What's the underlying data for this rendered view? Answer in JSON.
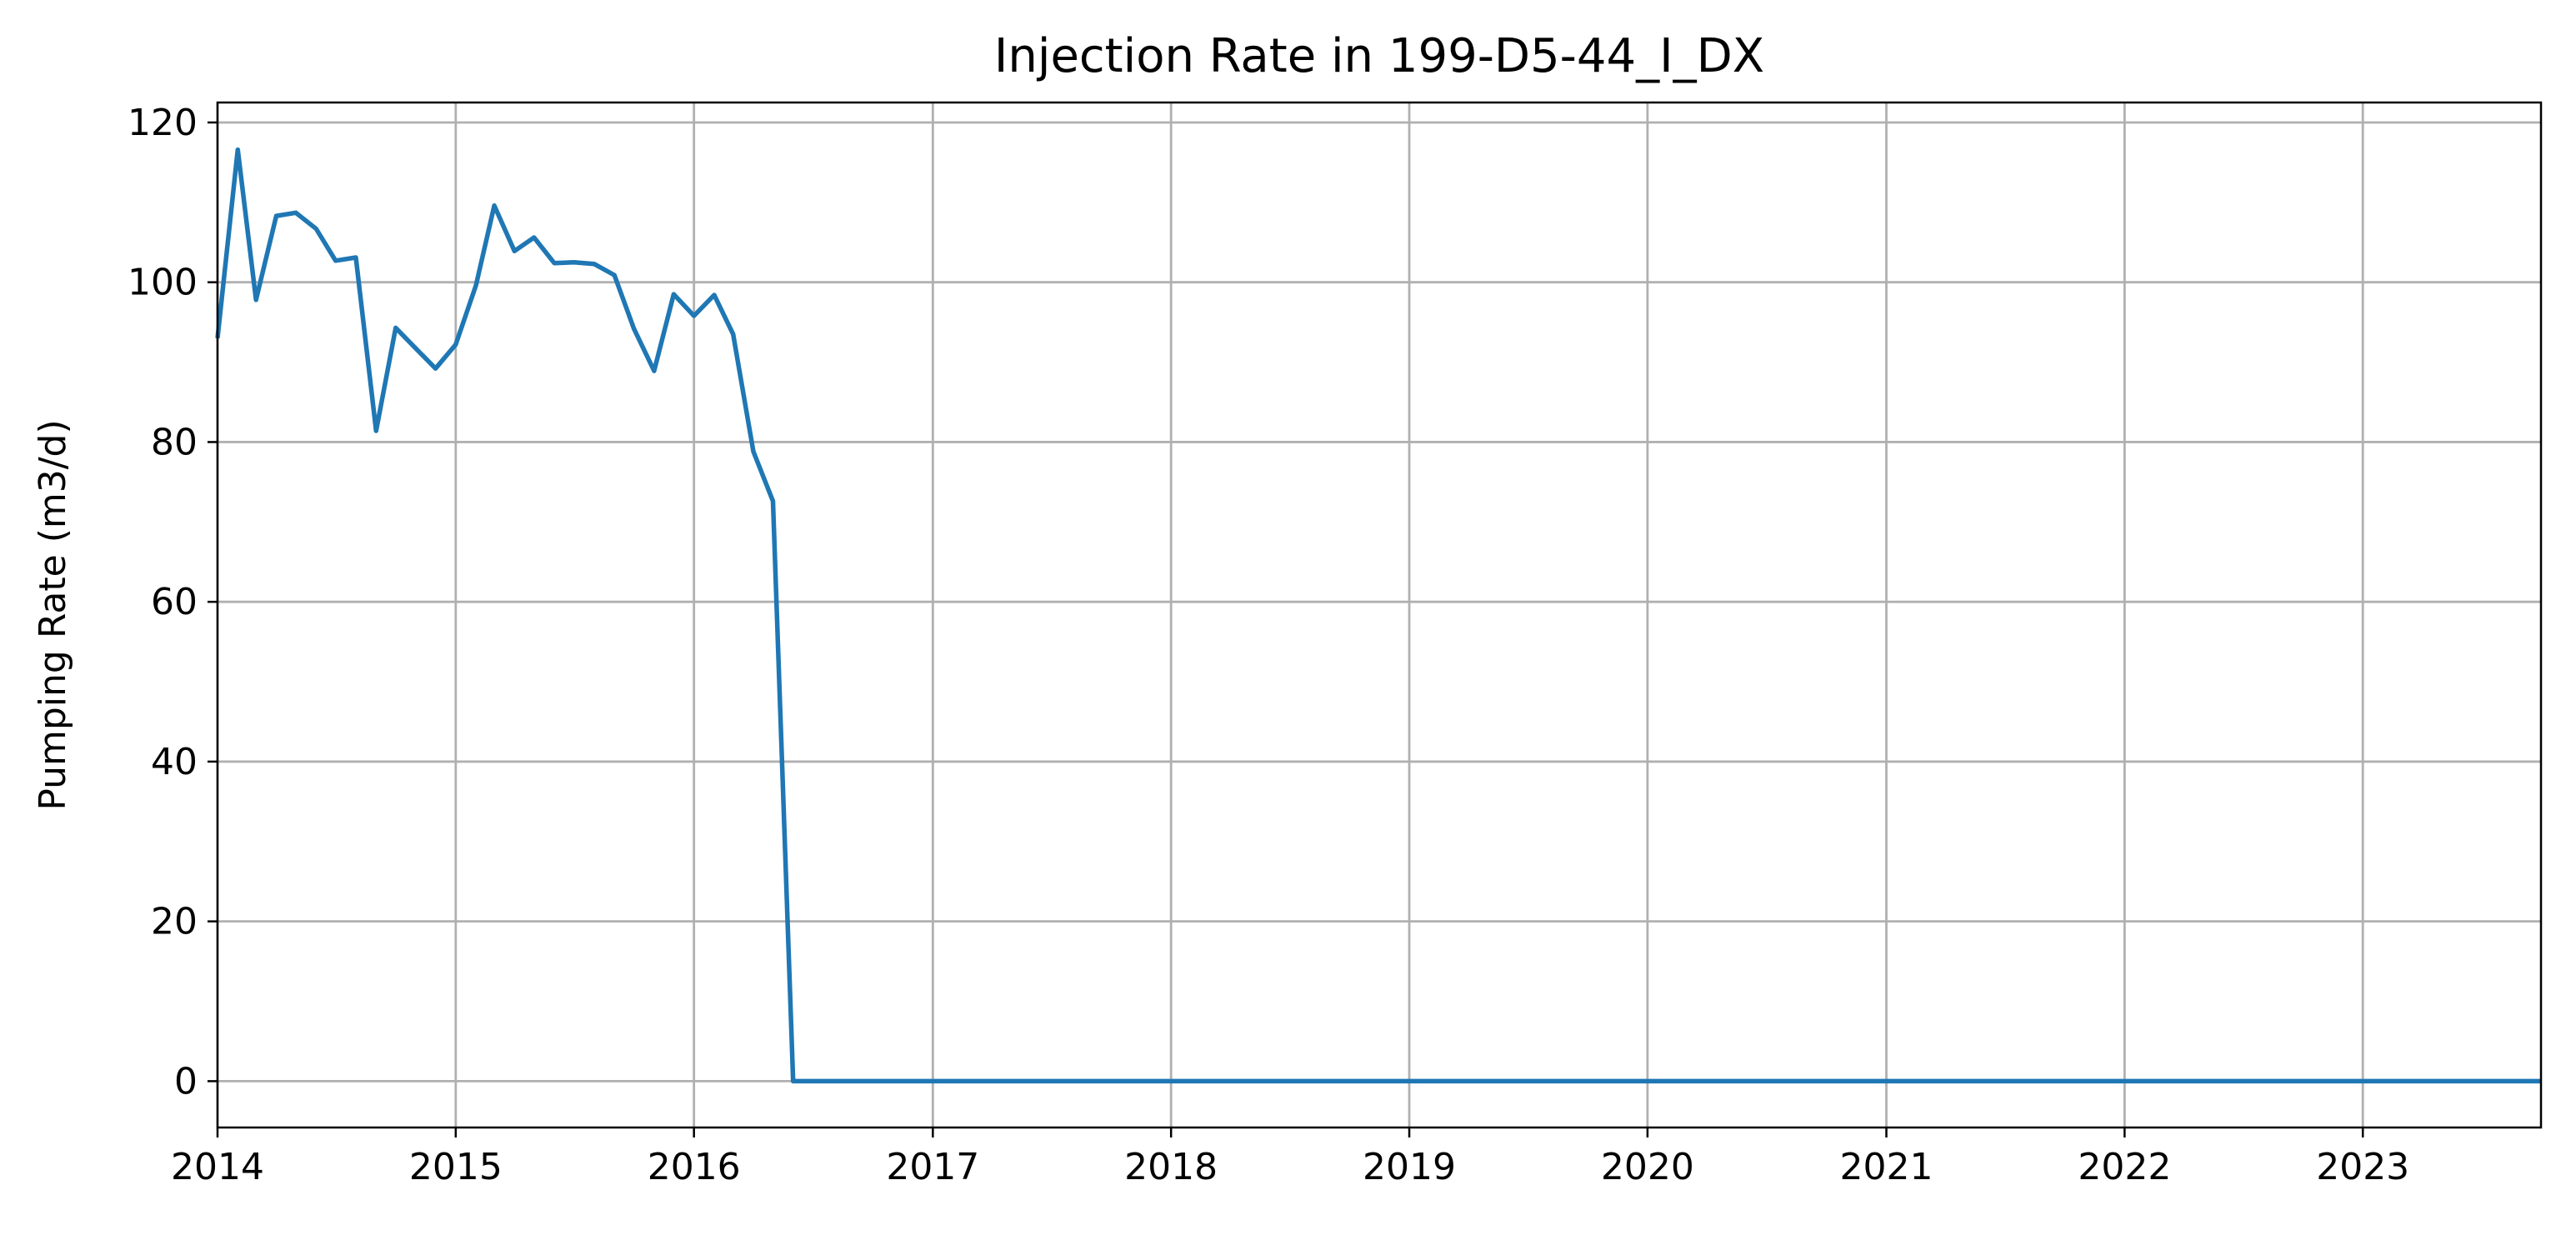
{
  "chart_data": {
    "type": "line",
    "title": "Injection Rate in 199-D5-44_I_DX",
    "xlabel": "",
    "ylabel": "Pumping Rate (m3/d)",
    "x_axis_type": "date",
    "xlim": [
      "2014-01-01",
      "2023-10-01"
    ],
    "ylim": [
      -5.8,
      122.5
    ],
    "x_ticks": [
      "2014",
      "2015",
      "2016",
      "2017",
      "2018",
      "2019",
      "2020",
      "2021",
      "2022",
      "2023"
    ],
    "y_ticks": [
      "0",
      "20",
      "40",
      "60",
      "80",
      "100",
      "120"
    ],
    "grid": true,
    "legend": "none",
    "line_color": "#1f77b4",
    "grid_color": "#b0b0b0",
    "series": [
      {
        "points": [
          [
            "2014-01-01",
            93
          ],
          [
            "2014-02-01",
            116.6
          ],
          [
            "2014-03-01",
            97.8
          ],
          [
            "2014-04-01",
            108.3
          ],
          [
            "2014-05-01",
            108.7
          ],
          [
            "2014-06-01",
            106.7
          ],
          [
            "2014-07-01",
            102.7
          ],
          [
            "2014-08-01",
            103.1
          ],
          [
            "2014-09-01",
            81.4
          ],
          [
            "2014-10-01",
            94.3
          ],
          [
            "2014-11-01",
            91.7
          ],
          [
            "2014-12-01",
            89.2
          ],
          [
            "2015-01-01",
            92.2
          ],
          [
            "2015-02-01",
            99.6
          ],
          [
            "2015-03-01",
            109.6
          ],
          [
            "2015-04-01",
            103.9
          ],
          [
            "2015-05-01",
            105.6
          ],
          [
            "2015-06-01",
            102.4
          ],
          [
            "2015-07-01",
            102.5
          ],
          [
            "2015-08-01",
            102.3
          ],
          [
            "2015-09-01",
            100.9
          ],
          [
            "2015-10-01",
            94.2
          ],
          [
            "2015-11-01",
            88.9
          ],
          [
            "2015-12-01",
            98.5
          ],
          [
            "2016-01-01",
            95.8
          ],
          [
            "2016-02-01",
            98.4
          ],
          [
            "2016-03-01",
            93.5
          ],
          [
            "2016-04-01",
            78.8
          ],
          [
            "2016-05-01",
            72.6
          ],
          [
            "2016-06-01",
            0
          ],
          [
            "2023-10-01",
            0
          ]
        ]
      }
    ]
  }
}
